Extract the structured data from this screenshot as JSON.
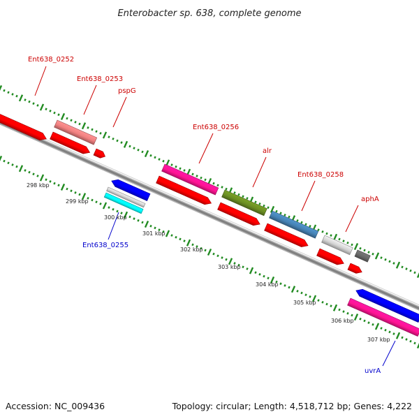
{
  "title": "Enterobacter sp. 638, complete genome",
  "footer": {
    "accession": "Accession: NC_009436",
    "summary": "Topology: circular; Length: 4,518,712 bp; Genes: 4,222"
  },
  "colors": {
    "backbone": "#808080",
    "tick": "#228B22",
    "cds": "#ff0000",
    "forward_label": "#cc0000",
    "reverse_label": "#0000cc"
  },
  "kbp_ticks": [
    "298 kbp",
    "299 kbp",
    "300 kbp",
    "301 kbp",
    "302 kbp",
    "303 kbp",
    "304 kbp",
    "305 kbp",
    "306 kbp",
    "307 kbp"
  ],
  "gene_labels": [
    {
      "text": "Ent638_0252",
      "strand": "forward"
    },
    {
      "text": "Ent638_0253",
      "strand": "forward"
    },
    {
      "text": "pspG",
      "strand": "forward"
    },
    {
      "text": "Ent638_0256",
      "strand": "forward"
    },
    {
      "text": "alr",
      "strand": "forward"
    },
    {
      "text": "Ent638_0258",
      "strand": "forward"
    },
    {
      "text": "aphA",
      "strand": "forward"
    },
    {
      "text": "Ent638_0255",
      "strand": "reverse"
    },
    {
      "text": "uvrA",
      "strand": "reverse"
    }
  ],
  "features": [
    {
      "name": "gene-0252",
      "color": "#ff0000",
      "strand": "forward"
    },
    {
      "name": "cds-0252",
      "color": "#ff0000",
      "strand": "forward"
    },
    {
      "name": "gene-0253",
      "color": "#f08080",
      "strand": "forward"
    },
    {
      "name": "cds-0253",
      "color": "#ff0000",
      "strand": "forward"
    },
    {
      "name": "cds-pspG",
      "color": "#ff0000",
      "strand": "forward"
    },
    {
      "name": "gene-0256",
      "color": "#ff1493",
      "strand": "forward"
    },
    {
      "name": "cds-0256",
      "color": "#ff0000",
      "strand": "forward"
    },
    {
      "name": "gene-alr",
      "color": "#6b8e23",
      "strand": "forward"
    },
    {
      "name": "cds-alr",
      "color": "#ff0000",
      "strand": "forward"
    },
    {
      "name": "gene-0258",
      "color": "#4682b4",
      "strand": "forward"
    },
    {
      "name": "cds-0258",
      "color": "#ff0000",
      "strand": "forward"
    },
    {
      "name": "gene-aphA",
      "color": "#d3d3d3",
      "strand": "forward"
    },
    {
      "name": "cds-aphA",
      "color": "#ff0000",
      "strand": "forward"
    },
    {
      "name": "small-dark-gene",
      "color": "#696969",
      "strand": "forward"
    },
    {
      "name": "small-red-cds",
      "color": "#ff0000",
      "strand": "forward"
    },
    {
      "name": "gene-0255",
      "color": "#0000ff",
      "strand": "reverse"
    },
    {
      "name": "light-gray-feature",
      "color": "#d3d3d3",
      "strand": "reverse"
    },
    {
      "name": "cyan-feature",
      "color": "#00ffff",
      "strand": "reverse"
    },
    {
      "name": "gene-uvrA",
      "color": "#0000ff",
      "strand": "reverse"
    },
    {
      "name": "uvrA-magenta-feature",
      "color": "#ff1493",
      "strand": "reverse"
    }
  ]
}
